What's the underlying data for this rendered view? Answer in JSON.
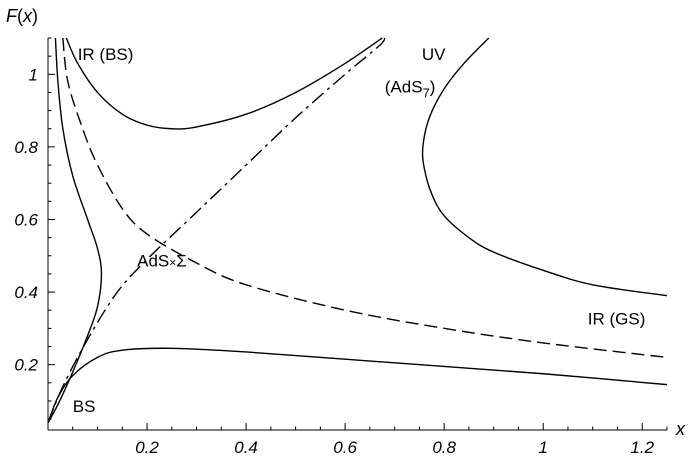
{
  "chart_data": {
    "type": "line",
    "xlabel": "x",
    "ylabel": "F(x)",
    "xlim": [
      0,
      1.25
    ],
    "ylim": [
      0.02,
      1.1
    ],
    "xticks": [
      0.2,
      0.4,
      0.6,
      0.8,
      1.0,
      1.2
    ],
    "xtick_labels": [
      "0.2",
      "0.4",
      "0.6",
      "0.8",
      "1",
      "1.2"
    ],
    "yticks": [
      0.2,
      0.4,
      0.6,
      0.8,
      1.0
    ],
    "ytick_labels": [
      "0.2",
      "0.4",
      "0.6",
      "0.8",
      "1"
    ],
    "grid": false,
    "series": [
      {
        "style": "solid",
        "points": [
          [
            0.037,
            1.1
          ],
          [
            0.06,
            1.03
          ],
          [
            0.1,
            0.95
          ],
          [
            0.15,
            0.89
          ],
          [
            0.2,
            0.86
          ],
          [
            0.25,
            0.85
          ],
          [
            0.3,
            0.855
          ],
          [
            0.4,
            0.89
          ],
          [
            0.5,
            0.95
          ],
          [
            0.6,
            1.03
          ],
          [
            0.675,
            1.1
          ]
        ]
      },
      {
        "style": "solid",
        "points": [
          [
            0.89,
            1.1
          ],
          [
            0.84,
            1.03
          ],
          [
            0.8,
            0.96
          ],
          [
            0.77,
            0.88
          ],
          [
            0.757,
            0.8
          ],
          [
            0.76,
            0.74
          ],
          [
            0.775,
            0.67
          ],
          [
            0.8,
            0.61
          ],
          [
            0.85,
            0.55
          ],
          [
            0.9,
            0.51
          ],
          [
            1.0,
            0.46
          ],
          [
            1.1,
            0.42
          ],
          [
            1.25,
            0.39
          ]
        ]
      },
      {
        "style": "solid",
        "points": [
          [
            0.015,
            1.1
          ],
          [
            0.02,
            0.98
          ],
          [
            0.03,
            0.85
          ],
          [
            0.05,
            0.72
          ],
          [
            0.08,
            0.6
          ],
          [
            0.1,
            0.52
          ],
          [
            0.108,
            0.45
          ],
          [
            0.1,
            0.36
          ],
          [
            0.08,
            0.28
          ],
          [
            0.05,
            0.18
          ],
          [
            0.02,
            0.09
          ],
          [
            0.0,
            0.04
          ]
        ]
      },
      {
        "style": "solid",
        "points": [
          [
            0.0,
            0.04
          ],
          [
            0.02,
            0.11
          ],
          [
            0.05,
            0.17
          ],
          [
            0.1,
            0.22
          ],
          [
            0.15,
            0.24
          ],
          [
            0.25,
            0.245
          ],
          [
            0.4,
            0.235
          ],
          [
            0.6,
            0.215
          ],
          [
            0.8,
            0.195
          ],
          [
            1.0,
            0.175
          ],
          [
            1.25,
            0.145
          ]
        ]
      },
      {
        "style": "dashed",
        "points": [
          [
            0.03,
            1.1
          ],
          [
            0.04,
            0.98
          ],
          [
            0.07,
            0.85
          ],
          [
            0.1,
            0.75
          ],
          [
            0.15,
            0.63
          ],
          [
            0.2,
            0.56
          ],
          [
            0.3,
            0.48
          ],
          [
            0.4,
            0.42
          ],
          [
            0.6,
            0.35
          ],
          [
            0.8,
            0.3
          ],
          [
            1.0,
            0.26
          ],
          [
            1.25,
            0.22
          ]
        ]
      },
      {
        "style": "dashdot",
        "points": [
          [
            0.0,
            0.04
          ],
          [
            0.03,
            0.14
          ],
          [
            0.08,
            0.27
          ],
          [
            0.14,
            0.4
          ],
          [
            0.2,
            0.49
          ],
          [
            0.3,
            0.62
          ],
          [
            0.4,
            0.75
          ],
          [
            0.5,
            0.88
          ],
          [
            0.6,
            1.0
          ],
          [
            0.67,
            1.08
          ],
          [
            0.68,
            1.1
          ]
        ]
      }
    ],
    "annotations": [
      {
        "text": "IR (BS)",
        "x": 0.06,
        "y": 1.04
      },
      {
        "text": "UV",
        "x": 0.755,
        "y": 1.04
      },
      {
        "text": "(AdS",
        "sub": "7",
        "close": ")",
        "x": 0.68,
        "y": 0.95
      },
      {
        "text": "AdS",
        "mid": "×",
        "tail": "Σ",
        "x": 0.18,
        "y": 0.47
      },
      {
        "text": "IR (GS)",
        "x": 1.09,
        "y": 0.31
      },
      {
        "text": "BS",
        "x": 0.05,
        "y": 0.07
      }
    ]
  }
}
